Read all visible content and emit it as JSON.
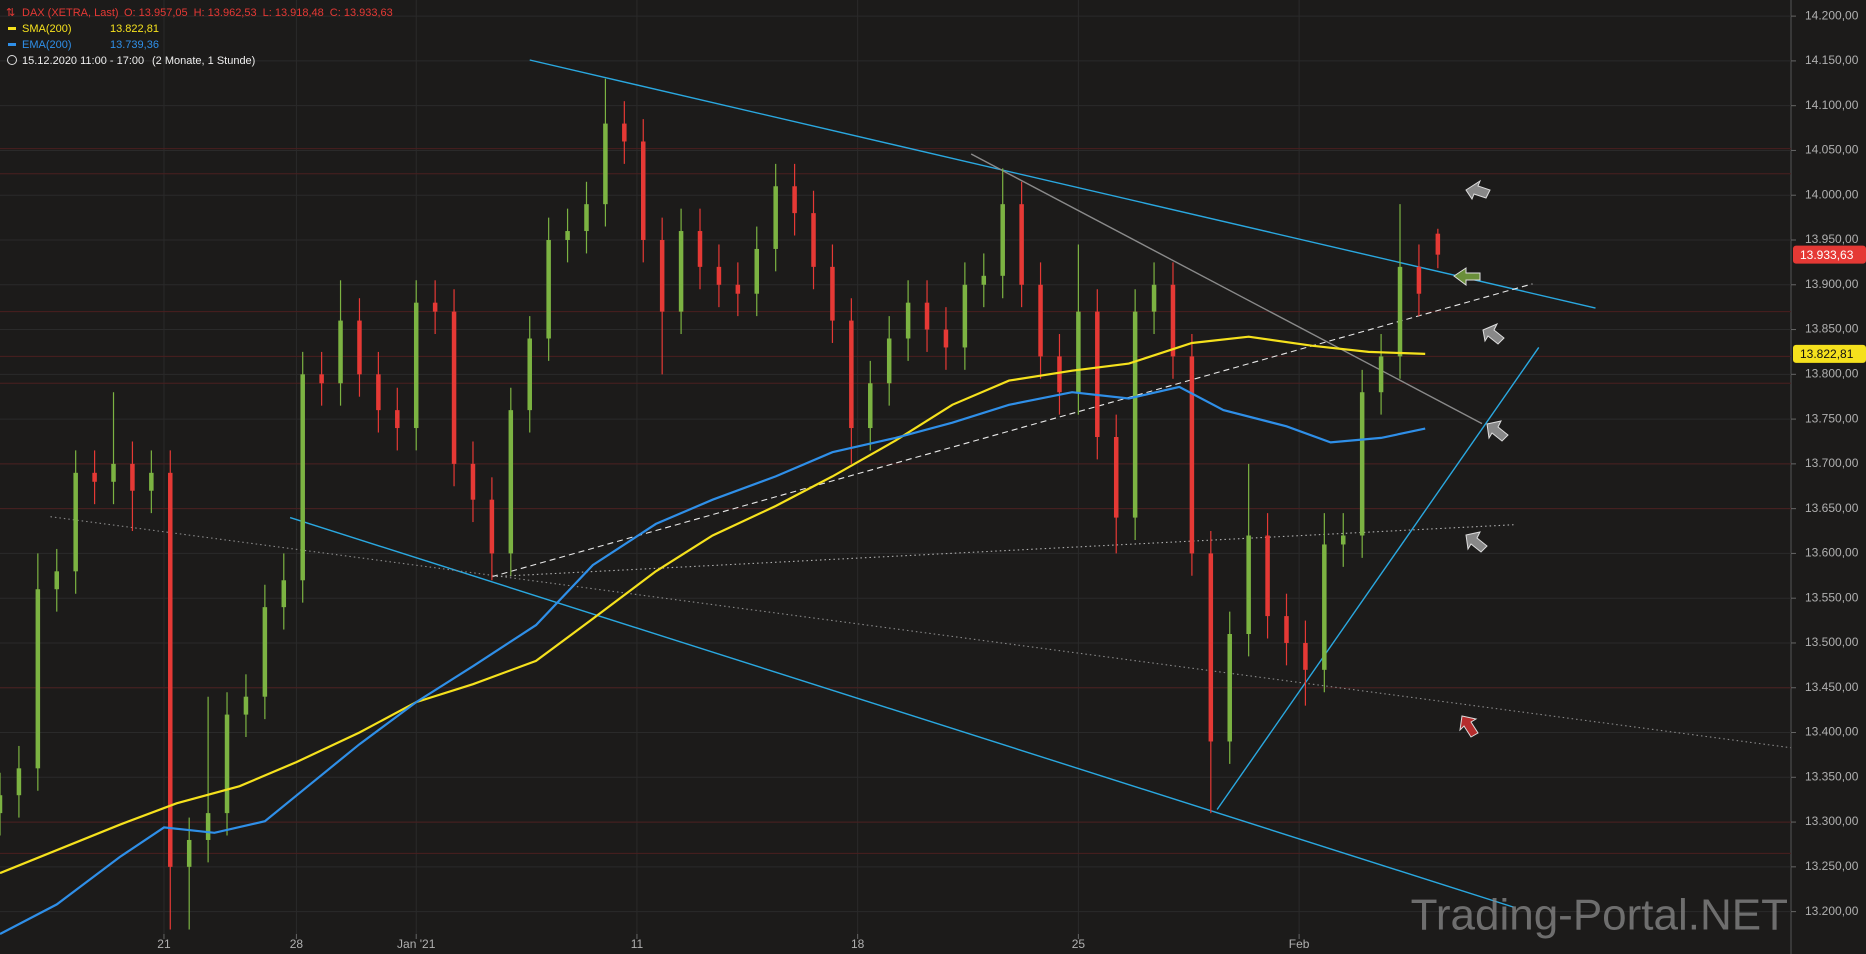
{
  "chart_data": {
    "type": "candlestick",
    "title": "DAX (XETRA, Last)",
    "ohlc_labels": [
      "O: 13.957,05",
      "H: 13.962,53",
      "L: 13.918,48",
      "C: 13.933,63"
    ],
    "period": "15.12.2020 11:00 - 17:00",
    "period_note": "(2 Monate, 1 Stunde)",
    "watermark": "Trading-Portal.NET",
    "xlim": [
      0,
      284
    ],
    "xticks": [
      {
        "value": 26,
        "label": "21"
      },
      {
        "value": 47,
        "label": "28"
      },
      {
        "value": 66,
        "label": "Jan '21"
      },
      {
        "value": 101,
        "label": "11"
      },
      {
        "value": 136,
        "label": "18"
      },
      {
        "value": 171,
        "label": "25"
      },
      {
        "value": 206,
        "label": "Feb"
      }
    ],
    "ylim": [
      13175,
      14218
    ],
    "yticks": [
      {
        "value": 14200,
        "label": "14.200,00"
      },
      {
        "value": 14150,
        "label": "14.150,00"
      },
      {
        "value": 14100,
        "label": "14.100,00"
      },
      {
        "value": 14050,
        "label": "14.050,00"
      },
      {
        "value": 14000,
        "label": "14.000,00"
      },
      {
        "value": 13950,
        "label": "13.950,00"
      },
      {
        "value": 13900,
        "label": "13.900,00"
      },
      {
        "value": 13850,
        "label": "13.850,00"
      },
      {
        "value": 13800,
        "label": "13.800,00"
      },
      {
        "value": 13750,
        "label": "13.750,00"
      },
      {
        "value": 13700,
        "label": "13.700,00"
      },
      {
        "value": 13650,
        "label": "13.650,00"
      },
      {
        "value": 13600,
        "label": "13.600,00"
      },
      {
        "value": 13550,
        "label": "13.550,00"
      },
      {
        "value": 13500,
        "label": "13.500,00"
      },
      {
        "value": 13450,
        "label": "13.450,00"
      },
      {
        "value": 13400,
        "label": "13.400,00"
      },
      {
        "value": 13350,
        "label": "13.350,00"
      },
      {
        "value": 13300,
        "label": "13.300,00"
      },
      {
        "value": 13250,
        "label": "13.250,00"
      },
      {
        "value": 13200,
        "label": "13.200,00"
      }
    ],
    "grid": true,
    "up_color": "#7cb342",
    "down_color": "#e53935",
    "candles": {
      "x": [
        0,
        3,
        6,
        9,
        12,
        15,
        18,
        21,
        24,
        27,
        30,
        33,
        36,
        39,
        42,
        45,
        48,
        51,
        54,
        57,
        60,
        63,
        66,
        69,
        72,
        75,
        78,
        81,
        84,
        87,
        90,
        93,
        96,
        99,
        102,
        105,
        108,
        111,
        114,
        117,
        120,
        123,
        126,
        129,
        132,
        135,
        138,
        141,
        144,
        147,
        150,
        153,
        156,
        159,
        162,
        165,
        168,
        171,
        174,
        177,
        180,
        183,
        186,
        189,
        192,
        195,
        198,
        201,
        204,
        207,
        210,
        213,
        216,
        219,
        222,
        225,
        228
      ],
      "open": [
        13310,
        13330,
        13360,
        13560,
        13580,
        13690,
        13680,
        13700,
        13670,
        13690,
        13250,
        13280,
        13310,
        13420,
        13440,
        13540,
        13570,
        13800,
        13790,
        13860,
        13800,
        13760,
        13740,
        13880,
        13870,
        13700,
        13660,
        13600,
        13760,
        13840,
        13950,
        13960,
        13990,
        14080,
        14060,
        13950,
        13870,
        13960,
        13920,
        13900,
        13890,
        13940,
        14010,
        13980,
        13920,
        13860,
        13740,
        13790,
        13840,
        13880,
        13850,
        13830,
        13900,
        13910,
        13990,
        13900,
        13820,
        13780,
        13870,
        13730,
        13640,
        13870,
        13900,
        13820,
        13600,
        13390,
        13510,
        13620,
        13530,
        13500,
        13470,
        13610,
        13620,
        13780,
        13820,
        13920,
        13957.05
      ],
      "high": [
        13355,
        13385,
        13600,
        13605,
        13715,
        13715,
        13780,
        13725,
        13715,
        13715,
        13305,
        13440,
        13445,
        13465,
        13565,
        13600,
        13825,
        13825,
        13905,
        13885,
        13825,
        13785,
        13905,
        13905,
        13895,
        13725,
        13685,
        13785,
        13865,
        13975,
        13985,
        14015,
        14130,
        14105,
        14085,
        13975,
        13985,
        13985,
        13945,
        13925,
        13965,
        14035,
        14035,
        14005,
        13945,
        13885,
        13815,
        13865,
        13905,
        13905,
        13875,
        13925,
        13935,
        14030,
        14015,
        13925,
        13845,
        13945,
        13895,
        13755,
        13895,
        13925,
        13925,
        13845,
        13625,
        13535,
        13700,
        13645,
        13555,
        13525,
        13645,
        13645,
        13805,
        13845,
        13990,
        13945,
        13962.53
      ],
      "low": [
        13285,
        13305,
        13335,
        13535,
        13555,
        13655,
        13655,
        13625,
        13645,
        13180,
        13180,
        13255,
        13285,
        13395,
        13415,
        13515,
        13545,
        13765,
        13765,
        13775,
        13735,
        13715,
        13715,
        13845,
        13675,
        13635,
        13570,
        13575,
        13735,
        13815,
        13925,
        13935,
        13965,
        14035,
        13925,
        13800,
        13845,
        13895,
        13875,
        13865,
        13865,
        13915,
        13955,
        13895,
        13835,
        13700,
        13715,
        13765,
        13815,
        13825,
        13805,
        13805,
        13875,
        13885,
        13875,
        13795,
        13755,
        13755,
        13705,
        13600,
        13615,
        13845,
        13795,
        13575,
        13310,
        13365,
        13485,
        13505,
        13475,
        13430,
        13445,
        13585,
        13595,
        13755,
        13795,
        13865,
        13918.48
      ],
      "close": [
        13330,
        13360,
        13560,
        13580,
        13690,
        13680,
        13700,
        13670,
        13690,
        13250,
        13280,
        13310,
        13420,
        13440,
        13540,
        13570,
        13800,
        13790,
        13860,
        13800,
        13760,
        13740,
        13880,
        13870,
        13700,
        13660,
        13600,
        13760,
        13840,
        13950,
        13960,
        13990,
        14080,
        14060,
        13950,
        13870,
        13960,
        13920,
        13900,
        13890,
        13940,
        14010,
        13980,
        13920,
        13860,
        13740,
        13790,
        13840,
        13880,
        13850,
        13830,
        13900,
        13910,
        13990,
        13900,
        13820,
        13780,
        13870,
        13730,
        13640,
        13870,
        13900,
        13820,
        13600,
        13390,
        13510,
        13620,
        13530,
        13500,
        13470,
        13610,
        13620,
        13780,
        13820,
        13920,
        13890,
        13933.63
      ]
    },
    "series": [
      {
        "name": "SMA(200)",
        "value_label": "13.822,81",
        "color": "#f5e11d",
        "x": [
          0,
          19,
          28,
          38,
          47,
          57,
          66,
          75,
          85,
          94,
          104,
          113,
          123,
          132,
          142,
          151,
          160,
          170,
          179,
          189,
          198,
          208,
          217,
          226
        ],
        "values": [
          13243,
          13297,
          13321,
          13340,
          13367,
          13400,
          13434,
          13454,
          13480,
          13527,
          13580,
          13620,
          13653,
          13686,
          13726,
          13766,
          13793,
          13804,
          13812,
          13835,
          13842,
          13832,
          13825,
          13822.81
        ]
      },
      {
        "name": "EMA(200)",
        "value_label": "13.739,36",
        "color": "#2f8fe8",
        "x": [
          0,
          9,
          19,
          26,
          34,
          42,
          49,
          57,
          66,
          75,
          85,
          94,
          104,
          113,
          123,
          132,
          142,
          151,
          160,
          170,
          179,
          187,
          194,
          204,
          211,
          219,
          226
        ],
        "values": [
          13175,
          13208,
          13261,
          13294,
          13288,
          13301,
          13341,
          13387,
          13434,
          13474,
          13520,
          13587,
          13633,
          13660,
          13686,
          13713,
          13729,
          13746,
          13766,
          13780,
          13773,
          13786,
          13760,
          13742,
          13724,
          13729,
          13739.36
        ]
      }
    ],
    "price_tags": [
      {
        "value": 13933.63,
        "label": "13.933,63",
        "color": "#e53935"
      },
      {
        "value": 13822.81,
        "label": "13.822,81",
        "color": "#f5e11d"
      }
    ],
    "levels": [
      14052,
      14024,
      13870,
      13820,
      13790,
      13700,
      13650,
      13450,
      13300,
      13265
    ],
    "level_color": "#4a1f1f",
    "trendlines": [
      {
        "x": [
          84,
          253
        ],
        "y": [
          14151,
          13874
        ],
        "color": "#2aa8e0",
        "style": "solid"
      },
      {
        "x": [
          46,
          240
        ],
        "y": [
          13640,
          13205
        ],
        "color": "#2aa8e0",
        "style": "solid"
      },
      {
        "x": [
          193,
          244
        ],
        "y": [
          13314,
          13830
        ],
        "color": "#2aa8e0",
        "style": "solid"
      },
      {
        "x": [
          78,
          243
        ],
        "y": [
          13574,
          13901
        ],
        "color": "#e8e8e8",
        "style": "dashed"
      },
      {
        "x": [
          154,
          235
        ],
        "y": [
          14046,
          13745
        ],
        "color": "#8a8a8a",
        "style": "solid"
      },
      {
        "x": [
          8,
          284
        ],
        "y": [
          13641,
          13383
        ],
        "color": "#8a8a8a",
        "style": "dotted"
      },
      {
        "x": [
          78,
          240
        ],
        "y": [
          13574,
          13632
        ],
        "color": "#b0b0b0",
        "style": "dotted"
      }
    ]
  }
}
